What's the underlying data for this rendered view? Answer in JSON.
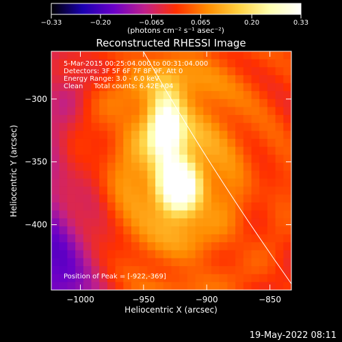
{
  "chart_data": {
    "type": "heatmap",
    "title": "Reconstructed RHESSI Image",
    "xlabel": "Heliocentric X (arcsec)",
    "ylabel": "Heliocentric Y (arcsec)",
    "xlim": [
      -1023,
      -833
    ],
    "ylim": [
      -452,
      -262
    ],
    "x_ticks": [
      {
        "value": -1000,
        "label": "−1000"
      },
      {
        "value": -950,
        "label": "−950"
      },
      {
        "value": -900,
        "label": "−900"
      },
      {
        "value": -850,
        "label": "−850"
      }
    ],
    "y_ticks": [
      {
        "value": -300,
        "label": "−300"
      },
      {
        "value": -350,
        "label": "−350"
      },
      {
        "value": -400,
        "label": "−400"
      }
    ],
    "colorbar": {
      "min": -0.33,
      "max": 0.33,
      "ticks": [
        {
          "value": -0.33,
          "label": "−0.33"
        },
        {
          "value": -0.2,
          "label": "−0.20"
        },
        {
          "value": -0.065,
          "label": "−0.065"
        },
        {
          "value": 0.065,
          "label": "0.065"
        },
        {
          "value": 0.2,
          "label": "0.20"
        },
        {
          "value": 0.33,
          "label": "0.33"
        }
      ],
      "units_label": "(photons cm⁻² s⁻¹ asec⁻²)",
      "colormap": [
        "#000000",
        "#1a00b0",
        "#6a00c8",
        "#c0208a",
        "#ff3000",
        "#ff8c00",
        "#ffd040",
        "#ffffb0",
        "#ffffff"
      ]
    },
    "annotations": [
      "5-Mar-2015 00:25:04.000 to 00:31:04.000",
      "Detectors: 3F 5F 6F 7F 8F 9F, Att 0",
      "Energy Range: 3.0 - 6.0 keV",
      "Clean     Total counts: 6.42E+04"
    ],
    "peak_label": "Position of Peak = [-922,-369]",
    "peak": [
      -922,
      -369
    ],
    "sources": [
      {
        "x": -932,
        "y": -323,
        "sx": 9,
        "sy": 20,
        "amp": 0.29
      },
      {
        "x": -922,
        "y": -370,
        "sx": 11,
        "sy": 15,
        "amp": 0.33
      },
      {
        "x": -928,
        "y": -345,
        "sx": 40,
        "sy": 70,
        "amp": 0.13
      }
    ],
    "limb_color": "#ffffff"
  },
  "footer": {
    "date": "19-May-2022 08:11"
  }
}
